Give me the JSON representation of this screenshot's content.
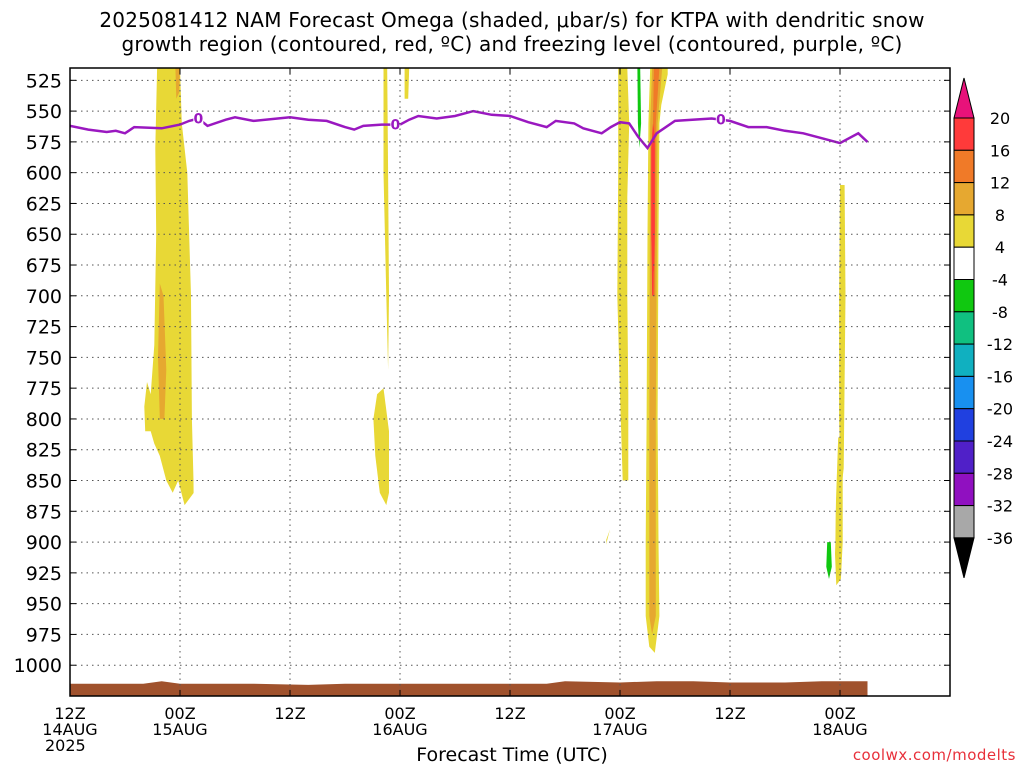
{
  "chart_data": {
    "type": "heatmap",
    "title_lines": [
      "2025081412 NAM Forecast Omega (shaded, μbar/s) for KTPA with dendritic snow",
      "growth region (contoured, red, ºC) and freezing level (contoured, purple, ºC)"
    ],
    "xlabel": "Forecast Time (UTC)",
    "credit": "coolwx.com/modelts",
    "y_ticks": [
      525,
      550,
      575,
      600,
      625,
      650,
      675,
      700,
      725,
      750,
      775,
      800,
      825,
      850,
      875,
      900,
      925,
      950,
      975,
      1000
    ],
    "ylim": [
      1025,
      515
    ],
    "xlim_hours": [
      0,
      96
    ],
    "x_ticks": [
      {
        "hour": 0,
        "lines": [
          "12Z",
          "14AUG",
          "2025"
        ]
      },
      {
        "hour": 12,
        "lines": [
          "00Z",
          "15AUG"
        ]
      },
      {
        "hour": 24,
        "lines": [
          "12Z"
        ]
      },
      {
        "hour": 36,
        "lines": [
          "00Z",
          "16AUG"
        ]
      },
      {
        "hour": 48,
        "lines": [
          "12Z"
        ]
      },
      {
        "hour": 60,
        "lines": [
          "00Z",
          "17AUG"
        ]
      },
      {
        "hour": 72,
        "lines": [
          "12Z"
        ]
      },
      {
        "hour": 84,
        "lines": [
          "00Z",
          "18AUG"
        ]
      }
    ],
    "colorbar": {
      "labels": [
        20,
        16,
        12,
        8,
        4,
        -4,
        -8,
        -12,
        -16,
        -20,
        -24,
        -28,
        -32,
        -36
      ],
      "colors": [
        "#ff3a3a",
        "#f07a28",
        "#e6a830",
        "#e8d836",
        "#ffffff",
        "#10c810",
        "#10c080",
        "#10b0c0",
        "#1890f0",
        "#2040e0",
        "#5020c8",
        "#9010c0",
        "#a8a8a8"
      ],
      "top_color": "#e8127a",
      "bottom_color": "#000000"
    },
    "grid": true,
    "freezing_level": {
      "label": "0",
      "color": "#9a18c0",
      "points": [
        [
          0,
          562
        ],
        [
          2,
          565
        ],
        [
          4,
          567
        ],
        [
          5,
          566
        ],
        [
          6,
          568
        ],
        [
          7,
          563
        ],
        [
          10,
          564
        ],
        [
          12,
          561
        ],
        [
          13,
          558
        ],
        [
          14,
          556
        ],
        [
          15,
          562
        ],
        [
          17,
          557
        ],
        [
          18,
          555
        ],
        [
          20,
          558
        ],
        [
          24,
          555
        ],
        [
          26,
          557
        ],
        [
          28,
          558
        ],
        [
          30,
          563
        ],
        [
          31,
          565
        ],
        [
          32,
          562
        ],
        [
          34,
          561
        ],
        [
          36,
          561
        ],
        [
          37,
          557
        ],
        [
          38,
          554
        ],
        [
          40,
          556
        ],
        [
          42,
          554
        ],
        [
          44,
          550
        ],
        [
          46,
          553
        ],
        [
          48,
          554
        ],
        [
          50,
          559
        ],
        [
          52,
          563
        ],
        [
          53,
          558
        ],
        [
          55,
          560
        ],
        [
          56,
          564
        ],
        [
          58,
          568
        ],
        [
          59,
          563
        ],
        [
          60,
          559
        ],
        [
          61,
          560
        ],
        [
          62,
          571
        ],
        [
          63,
          580
        ],
        [
          64,
          568
        ],
        [
          66,
          558
        ],
        [
          70,
          556
        ],
        [
          72,
          558
        ],
        [
          74,
          563
        ],
        [
          76,
          563
        ],
        [
          78,
          566
        ],
        [
          80,
          568
        ],
        [
          82,
          572
        ],
        [
          84,
          576
        ],
        [
          86,
          568
        ],
        [
          87,
          575
        ]
      ],
      "label_hours": [
        14,
        35.5,
        71
      ]
    },
    "surface": {
      "color": "#a0522d",
      "points": [
        [
          0,
          1015
        ],
        [
          8,
          1015
        ],
        [
          10,
          1013
        ],
        [
          12,
          1015
        ],
        [
          16,
          1015
        ],
        [
          20,
          1015
        ],
        [
          26,
          1016
        ],
        [
          30,
          1015
        ],
        [
          40,
          1015
        ],
        [
          52,
          1015
        ],
        [
          54,
          1013
        ],
        [
          60,
          1014
        ],
        [
          64,
          1013
        ],
        [
          68,
          1013
        ],
        [
          72,
          1014
        ],
        [
          78,
          1014
        ],
        [
          82,
          1013
        ],
        [
          87,
          1013
        ]
      ]
    },
    "omega_regions": [
      {
        "value": 4,
        "points": [
          [
            9.5,
            515
          ],
          [
            12,
            515
          ],
          [
            12.2,
            560
          ],
          [
            12.8,
            600
          ],
          [
            13.2,
            700
          ],
          [
            13.3,
            800
          ],
          [
            13.5,
            860
          ],
          [
            12.5,
            870
          ],
          [
            11.8,
            850
          ],
          [
            11.2,
            860
          ],
          [
            10.5,
            850
          ],
          [
            9.8,
            830
          ],
          [
            9.2,
            820
          ],
          [
            8.8,
            810
          ],
          [
            8.2,
            810
          ],
          [
            8.1,
            790
          ],
          [
            8.4,
            770
          ],
          [
            8.8,
            780
          ],
          [
            9.2,
            740
          ],
          [
            9.4,
            650
          ],
          [
            9.3,
            580
          ]
        ]
      },
      {
        "value": 8,
        "points": [
          [
            9.8,
            690
          ],
          [
            10.2,
            700
          ],
          [
            10.5,
            760
          ],
          [
            10.3,
            800
          ],
          [
            9.8,
            800
          ],
          [
            9.6,
            750
          ]
        ]
      },
      {
        "value": 8,
        "points": [
          [
            11.5,
            515
          ],
          [
            12,
            515
          ],
          [
            11.9,
            535
          ],
          [
            11.6,
            540
          ]
        ]
      },
      {
        "value": 4,
        "points": [
          [
            34.2,
            515
          ],
          [
            34.6,
            515
          ],
          [
            34.7,
            600
          ],
          [
            34.8,
            700
          ],
          [
            34.7,
            760
          ],
          [
            34.5,
            700
          ],
          [
            34.2,
            600
          ]
        ]
      },
      {
        "value": 4,
        "points": [
          [
            36.5,
            515
          ],
          [
            37,
            515
          ],
          [
            36.9,
            540
          ],
          [
            36.5,
            540
          ]
        ]
      },
      {
        "value": 4,
        "points": [
          [
            33.5,
            780
          ],
          [
            34.2,
            775
          ],
          [
            34.8,
            810
          ],
          [
            34.8,
            860
          ],
          [
            34.5,
            870
          ],
          [
            33.8,
            860
          ],
          [
            33.3,
            830
          ],
          [
            33.1,
            800
          ]
        ]
      },
      {
        "value": 4,
        "points": [
          [
            58.5,
            898
          ],
          [
            58.9,
            890
          ],
          [
            59.2,
            920
          ],
          [
            58.8,
            940
          ],
          [
            58.4,
            930
          ]
        ]
      },
      {
        "value": 4,
        "points": [
          [
            59.8,
            515
          ],
          [
            60.8,
            515
          ],
          [
            61,
            560
          ],
          [
            60.8,
            620
          ],
          [
            60.8,
            700
          ],
          [
            60.9,
            780
          ],
          [
            60.9,
            850
          ],
          [
            60.3,
            850
          ],
          [
            60,
            780
          ],
          [
            59.7,
            700
          ],
          [
            59.8,
            600
          ]
        ]
      },
      {
        "value": 4,
        "points": [
          [
            63.3,
            515
          ],
          [
            65.2,
            515
          ],
          [
            65.2,
            520
          ],
          [
            64.5,
            545
          ],
          [
            64.3,
            560
          ],
          [
            64.2,
            650
          ],
          [
            64.1,
            800
          ],
          [
            64.2,
            900
          ],
          [
            64.3,
            960
          ],
          [
            63.8,
            990
          ],
          [
            63.2,
            985
          ],
          [
            62.8,
            960
          ],
          [
            62.8,
            900
          ],
          [
            62.9,
            800
          ],
          [
            63,
            650
          ],
          [
            63.1,
            560
          ]
        ]
      },
      {
        "value": 8,
        "points": [
          [
            63.5,
            515
          ],
          [
            64.6,
            515
          ],
          [
            64.1,
            560
          ],
          [
            63.9,
            800
          ],
          [
            63.9,
            960
          ],
          [
            63.5,
            975
          ],
          [
            63.2,
            960
          ],
          [
            63.2,
            800
          ],
          [
            63.3,
            560
          ]
        ]
      },
      {
        "value": 12,
        "points": [
          [
            63.7,
            515
          ],
          [
            64.3,
            515
          ],
          [
            63.9,
            560
          ],
          [
            63.8,
            700
          ],
          [
            63.6,
            700
          ],
          [
            63.6,
            560
          ]
        ]
      },
      {
        "value": 16,
        "points": [
          [
            63.6,
            560
          ],
          [
            63.8,
            570
          ],
          [
            63.8,
            650
          ],
          [
            63.7,
            680
          ],
          [
            63.5,
            680
          ],
          [
            63.4,
            650
          ],
          [
            63.4,
            580
          ]
        ]
      },
      {
        "value": 20,
        "points": [
          [
            63.55,
            640
          ],
          [
            63.7,
            650
          ],
          [
            63.65,
            700
          ],
          [
            63.5,
            700
          ],
          [
            63.45,
            660
          ]
        ]
      },
      {
        "value": 4,
        "points": [
          [
            84,
            610
          ],
          [
            84.5,
            610
          ],
          [
            84.6,
            700
          ],
          [
            84.4,
            840
          ],
          [
            84.1,
            860
          ],
          [
            83.9,
            800
          ],
          [
            83.9,
            700
          ]
        ]
      },
      {
        "value": 4,
        "points": [
          [
            83.8,
            815
          ],
          [
            84.3,
            815
          ],
          [
            84.3,
            900
          ],
          [
            84.1,
            930
          ],
          [
            83.6,
            935
          ],
          [
            83.4,
            900
          ]
        ]
      },
      {
        "value": -4,
        "points": [
          [
            13.4,
            534
          ],
          [
            13.7,
            534
          ],
          [
            13.8,
            700
          ],
          [
            13.7,
            876
          ],
          [
            13.5,
            876
          ],
          [
            13.4,
            700
          ]
        ]
      },
      {
        "value": -4,
        "points": [
          [
            30.2,
            890
          ],
          [
            30.7,
            885
          ],
          [
            31.3,
            890
          ],
          [
            31.8,
            930
          ],
          [
            31.6,
            970
          ],
          [
            30.8,
            980
          ],
          [
            30.3,
            970
          ],
          [
            30.1,
            930
          ]
        ]
      },
      {
        "value": -4,
        "points": [
          [
            56.8,
            896
          ],
          [
            57.5,
            897
          ],
          [
            58.2,
            910
          ],
          [
            58.9,
            890
          ],
          [
            59.4,
            915
          ],
          [
            59.7,
            950
          ],
          [
            59.5,
            975
          ],
          [
            58.8,
            980
          ],
          [
            58.5,
            970
          ],
          [
            57.6,
            966
          ],
          [
            56.8,
            955
          ]
        ]
      },
      {
        "value": -4,
        "points": [
          [
            61.5,
            690
          ],
          [
            61.8,
            690
          ],
          [
            61.9,
            760
          ],
          [
            61.7,
            780
          ],
          [
            61.5,
            760
          ]
        ]
      },
      {
        "value": -4,
        "points": [
          [
            61.8,
            515
          ],
          [
            62.4,
            515
          ],
          [
            62.7,
            580
          ],
          [
            62.7,
            650
          ],
          [
            62.3,
            640
          ],
          [
            62,
            600
          ]
        ]
      },
      {
        "value": -8,
        "points": [
          [
            61.9,
            515
          ],
          [
            62.2,
            515
          ],
          [
            62.3,
            560
          ],
          [
            62.1,
            580
          ],
          [
            61.95,
            560
          ]
        ]
      },
      {
        "value": -4,
        "points": [
          [
            81.2,
            845
          ],
          [
            81.8,
            840
          ],
          [
            82.3,
            850
          ],
          [
            82.3,
            880
          ],
          [
            82.8,
            870
          ],
          [
            83.3,
            700
          ],
          [
            83.5,
            600
          ],
          [
            83.6,
            520
          ],
          [
            83.9,
            520
          ],
          [
            83.9,
            600
          ],
          [
            83.7,
            750
          ],
          [
            83.5,
            900
          ],
          [
            83.2,
            960
          ],
          [
            82.7,
            980
          ],
          [
            81.9,
            960
          ],
          [
            81.1,
            930
          ],
          [
            80.9,
            880
          ]
        ]
      },
      {
        "value": -8,
        "points": [
          [
            82.6,
            900
          ],
          [
            83,
            900
          ],
          [
            83.1,
            920
          ],
          [
            82.8,
            930
          ],
          [
            82.5,
            920
          ]
        ]
      }
    ]
  }
}
